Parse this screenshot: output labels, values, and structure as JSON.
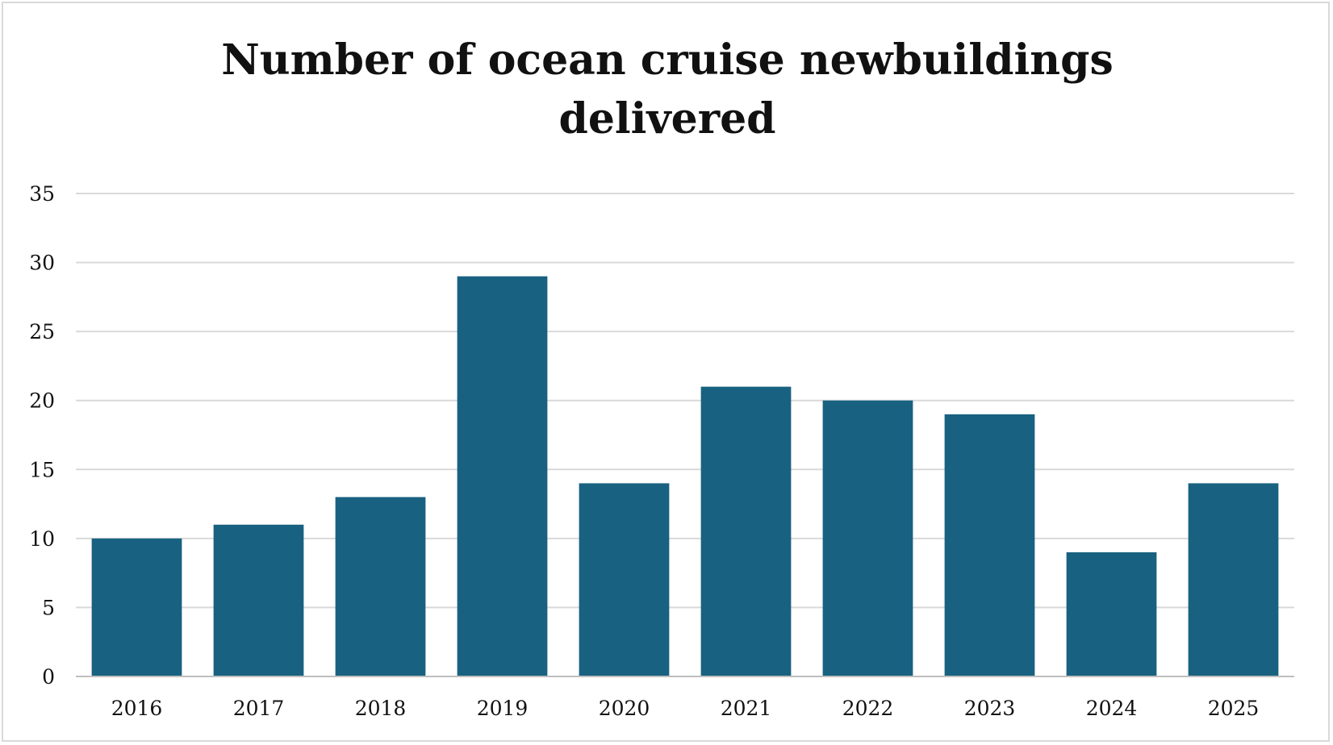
{
  "chart_data": {
    "type": "bar",
    "title_lines": [
      "Number of ocean cruise newbuildings",
      "delivered"
    ],
    "categories": [
      "2016",
      "2017",
      "2018",
      "2019",
      "2020",
      "2021",
      "2022",
      "2023",
      "2024",
      "2025"
    ],
    "values": [
      10,
      11,
      13,
      29,
      14,
      21,
      20,
      19,
      9,
      14
    ],
    "ylim": [
      0,
      35
    ],
    "yticks": [
      0,
      5,
      10,
      15,
      20,
      25,
      30,
      35
    ],
    "grid": true,
    "legend": "none",
    "xlabel": "",
    "ylabel": "",
    "colors": {
      "bar": "#186180",
      "grid": "#d9d9d9",
      "axis": "#bfbfbf",
      "text": "#111111"
    }
  }
}
